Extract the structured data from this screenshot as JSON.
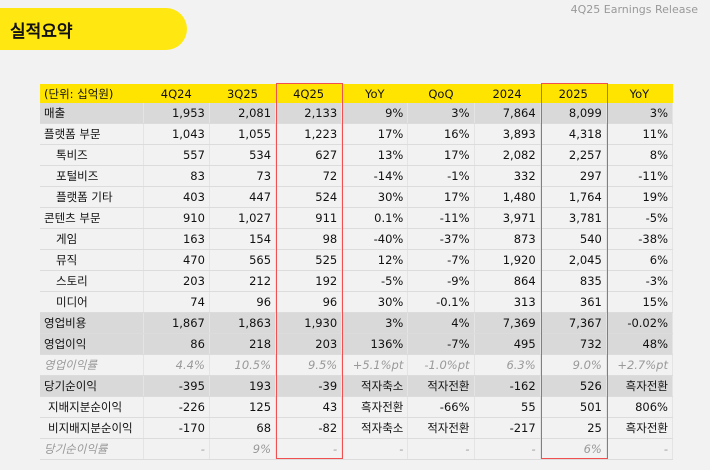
{
  "header": {
    "title": "실적요약",
    "release": "4Q25 Earnings Release"
  },
  "table": {
    "columns": [
      "(단위: 십억원)",
      "4Q24",
      "3Q25",
      "4Q25",
      "YoY",
      "QoQ",
      "2024",
      "2025",
      "YoY"
    ],
    "rows": [
      {
        "style": "gray",
        "cells": [
          "매출",
          "1,953",
          "2,081",
          "2,133",
          "9%",
          "3%",
          "7,864",
          "8,099",
          "3%"
        ]
      },
      {
        "style": "",
        "cells": [
          "플랫폼 부문",
          "1,043",
          "1,055",
          "1,223",
          "17%",
          "16%",
          "3,893",
          "4,318",
          "11%"
        ]
      },
      {
        "style": "sub",
        "cells": [
          "톡비즈",
          "557",
          "534",
          "627",
          "13%",
          "17%",
          "2,082",
          "2,257",
          "8%"
        ]
      },
      {
        "style": "sub",
        "cells": [
          "포털비즈",
          "83",
          "73",
          "72",
          "-14%",
          "-1%",
          "332",
          "297",
          "-11%"
        ]
      },
      {
        "style": "sub",
        "cells": [
          "플랫폼 기타",
          "403",
          "447",
          "524",
          "30%",
          "17%",
          "1,480",
          "1,764",
          "19%"
        ]
      },
      {
        "style": "",
        "cells": [
          "콘텐츠 부문",
          "910",
          "1,027",
          "911",
          "0.1%",
          "-11%",
          "3,971",
          "3,781",
          "-5%"
        ]
      },
      {
        "style": "sub",
        "cells": [
          "게임",
          "163",
          "154",
          "98",
          "-40%",
          "-37%",
          "873",
          "540",
          "-38%"
        ]
      },
      {
        "style": "sub",
        "cells": [
          "뮤직",
          "470",
          "565",
          "525",
          "12%",
          "-7%",
          "1,920",
          "2,045",
          "6%"
        ]
      },
      {
        "style": "sub",
        "cells": [
          "스토리",
          "203",
          "212",
          "192",
          "-5%",
          "-9%",
          "864",
          "835",
          "-3%"
        ]
      },
      {
        "style": "sub",
        "cells": [
          "미디어",
          "74",
          "96",
          "96",
          "30%",
          "-0.1%",
          "313",
          "361",
          "15%"
        ]
      },
      {
        "style": "gray",
        "cells": [
          "영업비용",
          "1,867",
          "1,863",
          "1,930",
          "3%",
          "4%",
          "7,369",
          "7,367",
          "-0.02%"
        ]
      },
      {
        "style": "gray",
        "cells": [
          "영업이익",
          "86",
          "218",
          "203",
          "136%",
          "-7%",
          "495",
          "732",
          "48%"
        ]
      },
      {
        "style": "ital",
        "cells": [
          "영업이익률",
          "4.4%",
          "10.5%",
          "9.5%",
          "+5.1%pt",
          "-1.0%pt",
          "6.3%",
          "9.0%",
          "+2.7%pt"
        ]
      },
      {
        "style": "gray",
        "cells": [
          "당기순이익",
          "-395",
          "193",
          "-39",
          "적자축소",
          "적자전환",
          "-162",
          "526",
          "흑자전환"
        ]
      },
      {
        "style": "sub2",
        "cells": [
          "지배지분순이익",
          "-226",
          "125",
          "43",
          "흑자전환",
          "-66%",
          "55",
          "501",
          "806%"
        ]
      },
      {
        "style": "sub2",
        "cells": [
          "비지배지분순이익",
          "-170",
          "68",
          "-82",
          "적자축소",
          "적자전환",
          "-217",
          "25",
          "흑자전환"
        ]
      },
      {
        "style": "ital",
        "cells": [
          "당기순이익률",
          "-",
          "9%",
          "-",
          "-",
          "-",
          "-",
          "6%",
          "-"
        ]
      }
    ]
  },
  "colors": {
    "accent": "#ffe400",
    "highlight": "#f05050"
  }
}
